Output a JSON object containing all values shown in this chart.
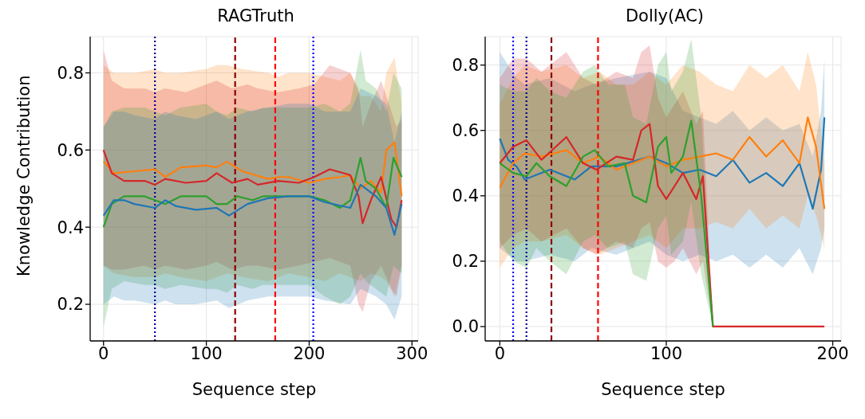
{
  "chart_data": [
    {
      "type": "line",
      "title": "RAGTruth",
      "xlabel": "Sequence step",
      "ylabel": "Knowledge Contribution",
      "xlim": [
        -13,
        306
      ],
      "ylim": [
        0.105,
        0.894
      ],
      "xticks": [
        0,
        100,
        200,
        300
      ],
      "yticks": [
        0.2,
        0.4,
        0.6,
        0.8
      ],
      "grid": true,
      "legend": false,
      "marker": "none",
      "line_style": "solid",
      "ref_lines": [
        {
          "axis": "x",
          "value": 50,
          "color": "#00008b",
          "line_style": "dotted"
        },
        {
          "axis": "x",
          "value": 128,
          "color": "#8b0000",
          "line_style": "dashed"
        },
        {
          "axis": "x",
          "value": 167,
          "color": "#ff0000",
          "line_style": "dashed"
        },
        {
          "axis": "x",
          "value": 204,
          "color": "#0000ff",
          "line_style": "dotted"
        }
      ],
      "series": [
        {
          "color": "#ff7f0e",
          "x": [
            0,
            10,
            30,
            50,
            60,
            75,
            100,
            110,
            120,
            135,
            160,
            170,
            180,
            200,
            215,
            230,
            240,
            250,
            260,
            270,
            275,
            283,
            290
          ],
          "values": [
            0.57,
            0.54,
            0.545,
            0.55,
            0.53,
            0.555,
            0.56,
            0.555,
            0.57,
            0.545,
            0.525,
            0.53,
            0.53,
            0.515,
            0.525,
            0.53,
            0.535,
            0.5,
            0.52,
            0.49,
            0.6,
            0.62,
            0.48
          ],
          "lower": [
            0.3,
            0.28,
            0.27,
            0.27,
            0.28,
            0.27,
            0.26,
            0.27,
            0.28,
            0.27,
            0.26,
            0.27,
            0.28,
            0.27,
            0.26,
            0.28,
            0.27,
            0.26,
            0.28,
            0.27,
            0.26,
            0.22,
            0.3
          ],
          "upper": [
            0.82,
            0.8,
            0.8,
            0.81,
            0.8,
            0.8,
            0.81,
            0.82,
            0.82,
            0.81,
            0.8,
            0.79,
            0.8,
            0.8,
            0.79,
            0.78,
            0.8,
            0.74,
            0.74,
            0.7,
            0.8,
            0.84,
            0.72
          ]
        },
        {
          "color": "#d62728",
          "x": [
            0,
            8,
            20,
            40,
            50,
            60,
            80,
            100,
            110,
            125,
            140,
            150,
            170,
            190,
            205,
            220,
            240,
            248,
            252,
            260,
            270,
            280,
            285,
            290
          ],
          "values": [
            0.6,
            0.54,
            0.52,
            0.52,
            0.51,
            0.525,
            0.515,
            0.52,
            0.54,
            0.515,
            0.525,
            0.51,
            0.52,
            0.515,
            0.53,
            0.55,
            0.535,
            0.48,
            0.41,
            0.47,
            0.53,
            0.42,
            0.4,
            0.47
          ],
          "lower": [
            0.3,
            0.29,
            0.29,
            0.3,
            0.29,
            0.3,
            0.29,
            0.3,
            0.31,
            0.29,
            0.3,
            0.3,
            0.29,
            0.3,
            0.31,
            0.32,
            0.3,
            0.2,
            0.18,
            0.26,
            0.3,
            0.24,
            0.22,
            0.3
          ],
          "upper": [
            0.86,
            0.78,
            0.76,
            0.76,
            0.75,
            0.76,
            0.75,
            0.77,
            0.78,
            0.76,
            0.77,
            0.76,
            0.75,
            0.76,
            0.77,
            0.82,
            0.8,
            0.76,
            0.66,
            0.72,
            0.78,
            0.7,
            0.66,
            0.68
          ]
        },
        {
          "color": "#2ca02c",
          "x": [
            0,
            8,
            20,
            40,
            50,
            60,
            75,
            100,
            110,
            120,
            130,
            145,
            155,
            175,
            200,
            215,
            230,
            240,
            250,
            255,
            265,
            275,
            282,
            290
          ],
          "values": [
            0.4,
            0.46,
            0.48,
            0.48,
            0.47,
            0.46,
            0.48,
            0.48,
            0.46,
            0.46,
            0.48,
            0.47,
            0.48,
            0.48,
            0.48,
            0.47,
            0.45,
            0.47,
            0.58,
            0.52,
            0.5,
            0.45,
            0.58,
            0.53
          ],
          "lower": [
            0.14,
            0.24,
            0.26,
            0.25,
            0.25,
            0.24,
            0.25,
            0.24,
            0.24,
            0.23,
            0.25,
            0.24,
            0.25,
            0.25,
            0.25,
            0.22,
            0.2,
            0.22,
            0.28,
            0.26,
            0.24,
            0.22,
            0.3,
            0.28
          ],
          "upper": [
            0.66,
            0.7,
            0.71,
            0.71,
            0.7,
            0.69,
            0.71,
            0.72,
            0.7,
            0.69,
            0.71,
            0.7,
            0.71,
            0.71,
            0.71,
            0.72,
            0.7,
            0.72,
            0.86,
            0.78,
            0.76,
            0.7,
            0.8,
            0.76
          ]
        },
        {
          "color": "#1f77b4",
          "x": [
            0,
            10,
            20,
            30,
            50,
            60,
            70,
            90,
            110,
            122,
            140,
            160,
            180,
            200,
            215,
            240,
            250,
            265,
            275,
            283,
            290
          ],
          "values": [
            0.43,
            0.47,
            0.47,
            0.46,
            0.45,
            0.47,
            0.455,
            0.445,
            0.45,
            0.43,
            0.46,
            0.475,
            0.48,
            0.48,
            0.465,
            0.45,
            0.51,
            0.48,
            0.45,
            0.38,
            0.46
          ],
          "lower": [
            0.2,
            0.22,
            0.21,
            0.21,
            0.2,
            0.21,
            0.2,
            0.2,
            0.21,
            0.19,
            0.21,
            0.22,
            0.22,
            0.22,
            0.21,
            0.2,
            0.24,
            0.22,
            0.2,
            0.16,
            0.22
          ],
          "upper": [
            0.66,
            0.7,
            0.7,
            0.69,
            0.68,
            0.7,
            0.69,
            0.68,
            0.7,
            0.68,
            0.7,
            0.71,
            0.72,
            0.72,
            0.7,
            0.7,
            0.76,
            0.74,
            0.72,
            0.62,
            0.7
          ]
        }
      ]
    },
    {
      "type": "line",
      "title": "Dolly(AC)",
      "xlabel": "Sequence step",
      "xlim": [
        -8.8,
        205
      ],
      "ylim": [
        -0.044,
        0.887
      ],
      "xticks": [
        0,
        100,
        200
      ],
      "yticks": [
        {
          "value": 0,
          "label": "0.0"
        },
        0.2,
        0.4,
        0.6,
        0.8
      ],
      "grid": true,
      "legend": false,
      "marker": "none",
      "line_style": "solid",
      "ref_lines": [
        {
          "axis": "x",
          "value": 8,
          "color": "#0000ff",
          "line_style": "dotted"
        },
        {
          "axis": "x",
          "value": 16,
          "color": "#00008b",
          "line_style": "dotted"
        },
        {
          "axis": "x",
          "value": 31,
          "color": "#8b0000",
          "line_style": "dashed"
        },
        {
          "axis": "x",
          "value": 59,
          "color": "#ff0000",
          "line_style": "dashed"
        }
      ],
      "series": [
        {
          "color": "#1f77b4",
          "x": [
            0,
            5,
            10,
            15,
            30,
            45,
            55,
            70,
            90,
            100,
            110,
            120,
            130,
            140,
            150,
            160,
            170,
            180,
            188,
            193,
            195
          ],
          "values": [
            0.575,
            0.51,
            0.49,
            0.45,
            0.48,
            0.45,
            0.49,
            0.49,
            0.52,
            0.5,
            0.47,
            0.48,
            0.46,
            0.51,
            0.44,
            0.47,
            0.43,
            0.5,
            0.36,
            0.48,
            0.64
          ],
          "lower": [
            0.24,
            0.22,
            0.2,
            0.2,
            0.22,
            0.2,
            0.24,
            0.22,
            0.26,
            0.22,
            0.2,
            0.22,
            0.2,
            0.22,
            0.18,
            0.22,
            0.18,
            0.24,
            0.16,
            0.24,
            0.3
          ],
          "upper": [
            0.84,
            0.8,
            0.76,
            0.74,
            0.76,
            0.72,
            0.74,
            0.76,
            0.78,
            0.76,
            0.66,
            0.64,
            0.62,
            0.66,
            0.6,
            0.64,
            0.6,
            0.62,
            0.52,
            0.66,
            0.82
          ]
        },
        {
          "color": "#ff7f0e",
          "x": [
            0,
            8,
            15,
            25,
            40,
            50,
            60,
            70,
            80,
            90,
            100,
            110,
            120,
            130,
            140,
            150,
            160,
            170,
            180,
            185,
            190,
            195
          ],
          "values": [
            0.425,
            0.5,
            0.53,
            0.52,
            0.54,
            0.5,
            0.52,
            0.48,
            0.5,
            0.52,
            0.49,
            0.51,
            0.52,
            0.53,
            0.51,
            0.58,
            0.52,
            0.57,
            0.5,
            0.64,
            0.55,
            0.36
          ],
          "lower": [
            0.18,
            0.24,
            0.26,
            0.26,
            0.28,
            0.24,
            0.22,
            0.24,
            0.26,
            0.28,
            0.24,
            0.3,
            0.3,
            0.32,
            0.3,
            0.36,
            0.3,
            0.34,
            0.3,
            0.4,
            0.34,
            0.24
          ],
          "upper": [
            0.68,
            0.76,
            0.8,
            0.78,
            0.8,
            0.76,
            0.78,
            0.74,
            0.74,
            0.78,
            0.74,
            0.8,
            0.78,
            0.74,
            0.72,
            0.8,
            0.76,
            0.8,
            0.72,
            0.84,
            0.74,
            0.5
          ]
        },
        {
          "color": "#d62728",
          "x": [
            0,
            8,
            16,
            25,
            40,
            50,
            58,
            70,
            80,
            85,
            90,
            95,
            100,
            105,
            110,
            118,
            122,
            128,
            195
          ],
          "values": [
            0.5,
            0.55,
            0.57,
            0.51,
            0.58,
            0.5,
            0.48,
            0.52,
            0.51,
            0.6,
            0.62,
            0.43,
            0.39,
            0.43,
            0.47,
            0.39,
            0.46,
            0.0,
            0.0
          ],
          "lower": [
            0.24,
            0.28,
            0.3,
            0.26,
            0.3,
            0.24,
            0.22,
            0.26,
            0.24,
            0.3,
            0.32,
            0.2,
            0.18,
            0.2,
            0.24,
            0.16,
            0.2,
            0.0,
            0.0
          ],
          "upper": [
            0.76,
            0.82,
            0.82,
            0.78,
            0.84,
            0.76,
            0.74,
            0.78,
            0.76,
            0.84,
            0.86,
            0.7,
            0.64,
            0.68,
            0.72,
            0.62,
            0.66,
            0.0,
            0.0
          ]
        },
        {
          "color": "#2ca02c",
          "x": [
            0,
            8,
            16,
            22,
            30,
            40,
            50,
            57,
            65,
            75,
            80,
            88,
            95,
            100,
            103,
            110,
            115,
            121,
            128
          ],
          "values": [
            0.5,
            0.47,
            0.46,
            0.5,
            0.46,
            0.43,
            0.52,
            0.54,
            0.49,
            0.5,
            0.4,
            0.38,
            0.55,
            0.58,
            0.47,
            0.52,
            0.63,
            0.4,
            0.0
          ],
          "lower": [
            0.26,
            0.2,
            0.18,
            0.24,
            0.2,
            0.16,
            0.26,
            0.28,
            0.24,
            0.26,
            0.16,
            0.14,
            0.3,
            0.34,
            0.22,
            0.26,
            0.38,
            0.16,
            0.0
          ],
          "upper": [
            0.74,
            0.72,
            0.72,
            0.76,
            0.72,
            0.7,
            0.78,
            0.8,
            0.74,
            0.74,
            0.64,
            0.62,
            0.8,
            0.84,
            0.72,
            0.78,
            0.88,
            0.64,
            0.0
          ]
        }
      ]
    }
  ]
}
